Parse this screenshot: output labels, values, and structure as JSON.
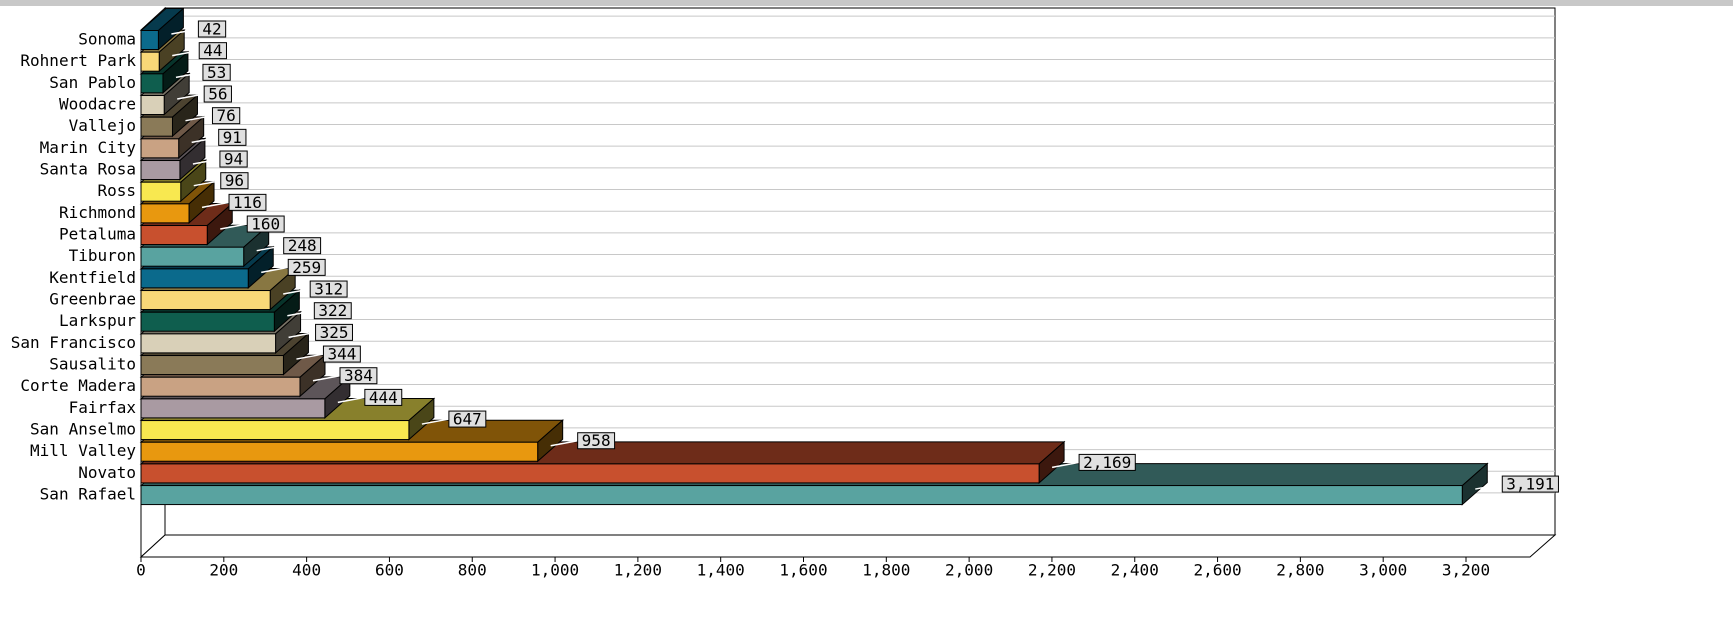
{
  "chart_data": {
    "type": "bar3d",
    "orientation": "horizontal",
    "categories": [
      "Sonoma",
      "Rohnert Park",
      "San Pablo",
      "Woodacre",
      "Vallejo",
      "Marin City",
      "Santa Rosa",
      "Ross",
      "Richmond",
      "Petaluma",
      "Tiburon",
      "Kentfield",
      "Greenbrae",
      "Larkspur",
      "San Francisco",
      "Sausalito",
      "Corte Madera",
      "Fairfax",
      "San Anselmo",
      "Mill Valley",
      "Novato",
      "San Rafael"
    ],
    "values": [
      42,
      44,
      53,
      56,
      76,
      91,
      94,
      96,
      116,
      160,
      248,
      259,
      312,
      322,
      325,
      344,
      384,
      444,
      647,
      958,
      2169,
      3191
    ],
    "value_labels": [
      "42",
      "44",
      "53",
      "56",
      "76",
      "91",
      "94",
      "96",
      "116",
      "160",
      "248",
      "259",
      "312",
      "322",
      "325",
      "344",
      "384",
      "444",
      "647",
      "958",
      "2,169",
      "3,191"
    ],
    "colors": [
      "#0b6a8c",
      "#f8d878",
      "#0f5e4e",
      "#d9d0b8",
      "#8a7a58",
      "#c9a283",
      "#a99aa2",
      "#f8e850",
      "#e8980f",
      "#c8502e",
      "#59a3a0",
      "#0b6a8c",
      "#f8d878",
      "#0f5e4e",
      "#d9d0b8",
      "#8a7a58",
      "#c9a283",
      "#a99aa2",
      "#f8e850",
      "#e8980f",
      "#c8502e",
      "#59a3a0"
    ],
    "xlim": [
      0,
      3200
    ],
    "xticks": [
      0,
      200,
      400,
      600,
      800,
      {
        "value": 1000,
        "label": "1,000"
      },
      {
        "value": 1200,
        "label": "1,200"
      },
      {
        "value": 1400,
        "label": "1,400"
      },
      {
        "value": 1600,
        "label": "1,600"
      },
      {
        "value": 1800,
        "label": "1,800"
      },
      {
        "value": 2000,
        "label": "2,000"
      },
      {
        "value": 2200,
        "label": "2,200"
      },
      {
        "value": 2400,
        "label": "2,400"
      },
      {
        "value": 2600,
        "label": "2,600"
      },
      {
        "value": 2800,
        "label": "2,800"
      },
      {
        "value": 3000,
        "label": "3,000"
      },
      {
        "value": 3200,
        "label": "3,200"
      }
    ]
  }
}
